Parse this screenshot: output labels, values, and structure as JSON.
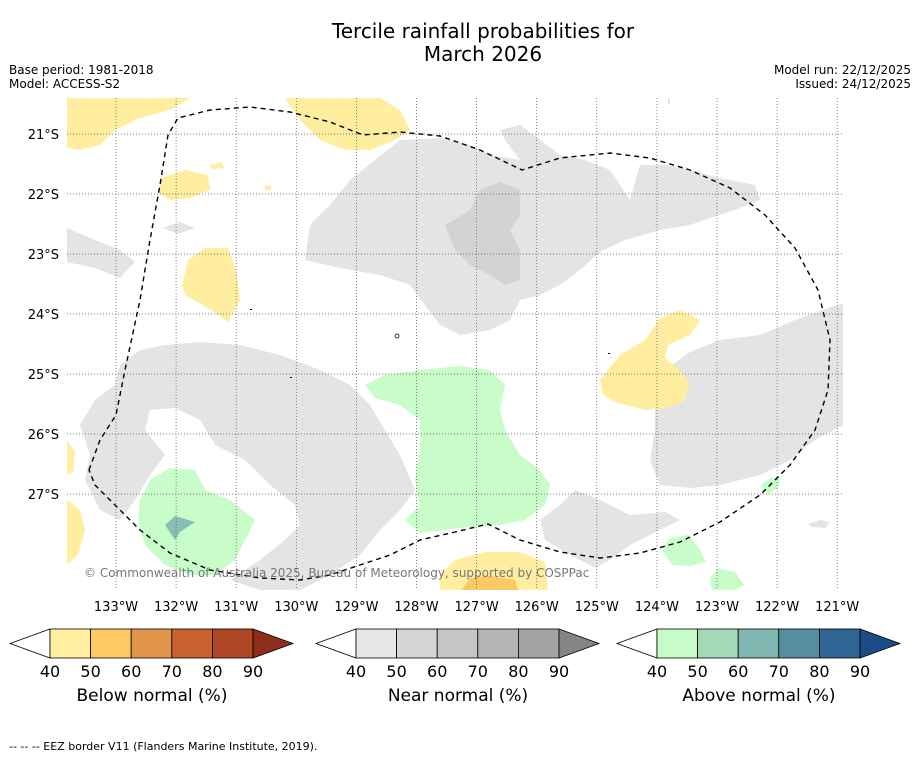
{
  "title_line1": "Tercile rainfall probabilities for",
  "title_line2": "March 2026",
  "base_period": "Base period: 1981-2018",
  "model": "Model: ACCESS-S2",
  "model_run": "Model run: 22/12/2025",
  "issued": "Issued: 24/12/2025",
  "copyright": "© Commonwealth of Australia 2025, Bureau of Meteorology, supported by COSPPac",
  "footer": "--  --  -- EEZ border V11 (Flanders Marine Institute, 2019).",
  "lat_labels": [
    "21°S",
    "22°S",
    "23°S",
    "24°S",
    "25°S",
    "26°S",
    "27°S"
  ],
  "lon_labels": [
    "133°W",
    "132°W",
    "131°W",
    "130°W",
    "129°W",
    "128°W",
    "127°W",
    "126°W",
    "125°W",
    "124°W",
    "123°W",
    "122°W",
    "121°W"
  ],
  "colorbars": [
    {
      "title": "Below normal (%)",
      "ticks": [
        "40",
        "50",
        "60",
        "70",
        "80",
        "90"
      ],
      "colors": [
        "#ffef9f",
        "#fdc962",
        "#e0954a",
        "#c9622f",
        "#ae4726",
        "#8f2d1c"
      ]
    },
    {
      "title": "Near normal (%)",
      "ticks": [
        "40",
        "50",
        "60",
        "70",
        "80",
        "90"
      ],
      "colors": [
        "#e6e6e6",
        "#d6d6d6",
        "#c5c5c5",
        "#b5b5b5",
        "#a3a3a3",
        "#858585"
      ]
    },
    {
      "title": "Above normal (%)",
      "ticks": [
        "40",
        "50",
        "60",
        "70",
        "80",
        "90"
      ],
      "colors": [
        "#c7fcc8",
        "#a4d9b5",
        "#80b6b0",
        "#558f9f",
        "#2e6595",
        "#1a4c86"
      ]
    }
  ],
  "colors": {
    "below_light": "#ffeda0",
    "below_mid": "#fdc962",
    "near_light": "#e4e4e4",
    "near_mid": "#d4d4d4",
    "above_light": "#c8fcc9",
    "above_mid": "#87bfb6"
  }
}
